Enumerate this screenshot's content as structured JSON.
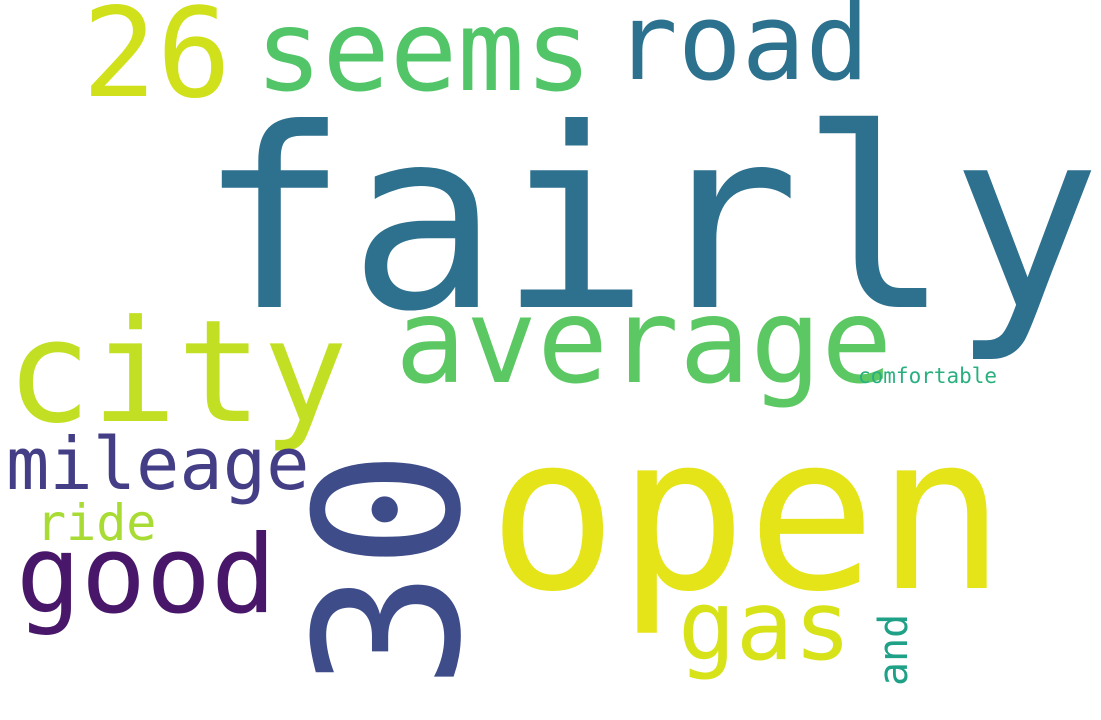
{
  "words": {
    "fairly": {
      "text": "fairly",
      "color": "#2d718e"
    },
    "open": {
      "text": "open",
      "color": "#e5e419"
    },
    "thirty": {
      "text": "30",
      "color": "#3e4c8a"
    },
    "average": {
      "text": "average",
      "color": "#5cc863"
    },
    "city": {
      "text": "city",
      "color": "#c2df23"
    },
    "seems": {
      "text": "seems",
      "color": "#52c569"
    },
    "road": {
      "text": "road",
      "color": "#2c728e"
    },
    "twentysix": {
      "text": "26",
      "color": "#d0e11c"
    },
    "good": {
      "text": "good",
      "color": "#481769"
    },
    "mileage": {
      "text": "mileage",
      "color": "#433e85"
    },
    "gas": {
      "text": "gas",
      "color": "#d8e219"
    },
    "ride": {
      "text": "ride",
      "color": "#a8db34"
    },
    "and": {
      "text": "and",
      "color": "#1fa187"
    },
    "comfortable": {
      "text": "comfortable",
      "color": "#2ab07f"
    }
  }
}
